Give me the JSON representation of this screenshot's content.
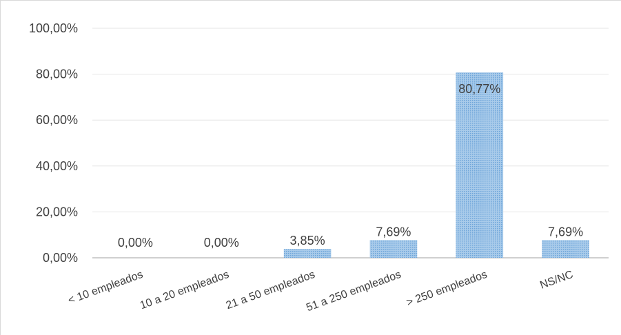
{
  "chart_data": {
    "type": "bar",
    "categories": [
      "< 10 empleados",
      "10 a 20 empleados",
      "21 a 50 empleados",
      "51 a 250 empleados",
      "> 250 empleados",
      "NS/NC"
    ],
    "values": [
      0.0,
      0.0,
      3.85,
      7.69,
      80.77,
      7.69
    ],
    "data_labels": [
      "0,00%",
      "0,00%",
      "3,85%",
      "7,69%",
      "80,77%",
      "7,69%"
    ],
    "y_ticks": [
      0,
      20,
      40,
      60,
      80,
      100
    ],
    "y_tick_labels": [
      "0,00%",
      "20,00%",
      "40,00%",
      "60,00%",
      "80,00%",
      "100,00%"
    ],
    "ylim": [
      0,
      100
    ],
    "title": "",
    "xlabel": "",
    "ylabel": "",
    "grid": true,
    "legend": "none",
    "bar_color": "#9dc3e6",
    "bar_pattern_color": "#5b9bd5",
    "grid_color": "#e6e6e6",
    "axis_color": "#bfbfbf",
    "text_color": "#404040"
  }
}
